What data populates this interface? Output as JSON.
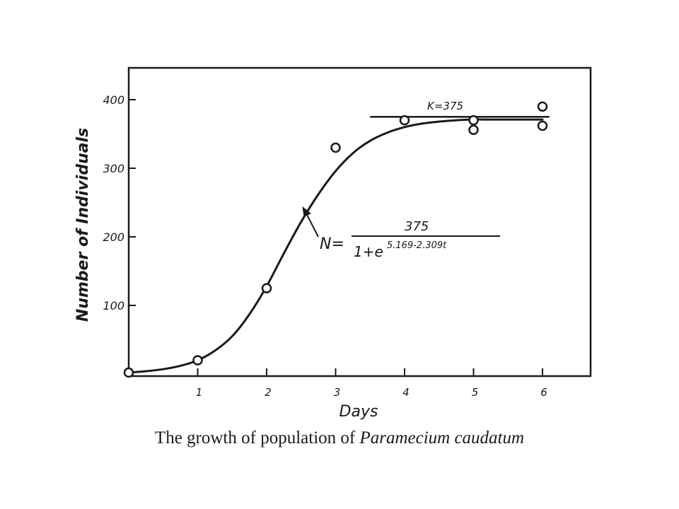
{
  "caption": {
    "prefix": "The growth of population of ",
    "species": "Paramecium caudatum"
  },
  "chart_data": {
    "type": "scatter",
    "title": "",
    "xlabel": "Days",
    "ylabel": "Number of Individuals",
    "xlim": [
      0,
      6.6
    ],
    "ylim": [
      0,
      400
    ],
    "xticks": [
      "1",
      "2",
      "3",
      "4",
      "5",
      "6"
    ],
    "yticks": [
      "100",
      "200",
      "300",
      "400"
    ],
    "grid": false,
    "series": [
      {
        "type": "scatter",
        "x": [
          0,
          1,
          2,
          3,
          4,
          5,
          5,
          6,
          6
        ],
        "y": [
          2,
          20,
          125,
          330,
          370,
          370,
          356,
          390,
          362
        ]
      },
      {
        "type": "line",
        "x": [
          0,
          0.25,
          0.5,
          0.75,
          1,
          1.25,
          1.5,
          1.75,
          2,
          2.25,
          2.5,
          2.75,
          3,
          3.25,
          3.5,
          3.75,
          4,
          4.25,
          4.5,
          4.75,
          5,
          5.25,
          5.5,
          5.75,
          6
        ],
        "y": [
          2,
          4,
          7,
          12,
          20,
          34,
          55,
          87,
          128,
          176,
          222,
          262,
          296,
          322,
          340,
          352,
          360,
          365,
          368,
          370,
          371,
          371,
          371,
          371,
          371
        ]
      }
    ],
    "annotations": {
      "carrying_capacity": "K=375",
      "carrying_capacity_value": 375,
      "equation_lhs": "N=",
      "equation_numerator": "375",
      "equation_denominator": "1+e",
      "equation_exponent": "5.169-2.309t"
    },
    "colors": {
      "ink": "#1a1a1a",
      "background": "#ffffff"
    }
  }
}
